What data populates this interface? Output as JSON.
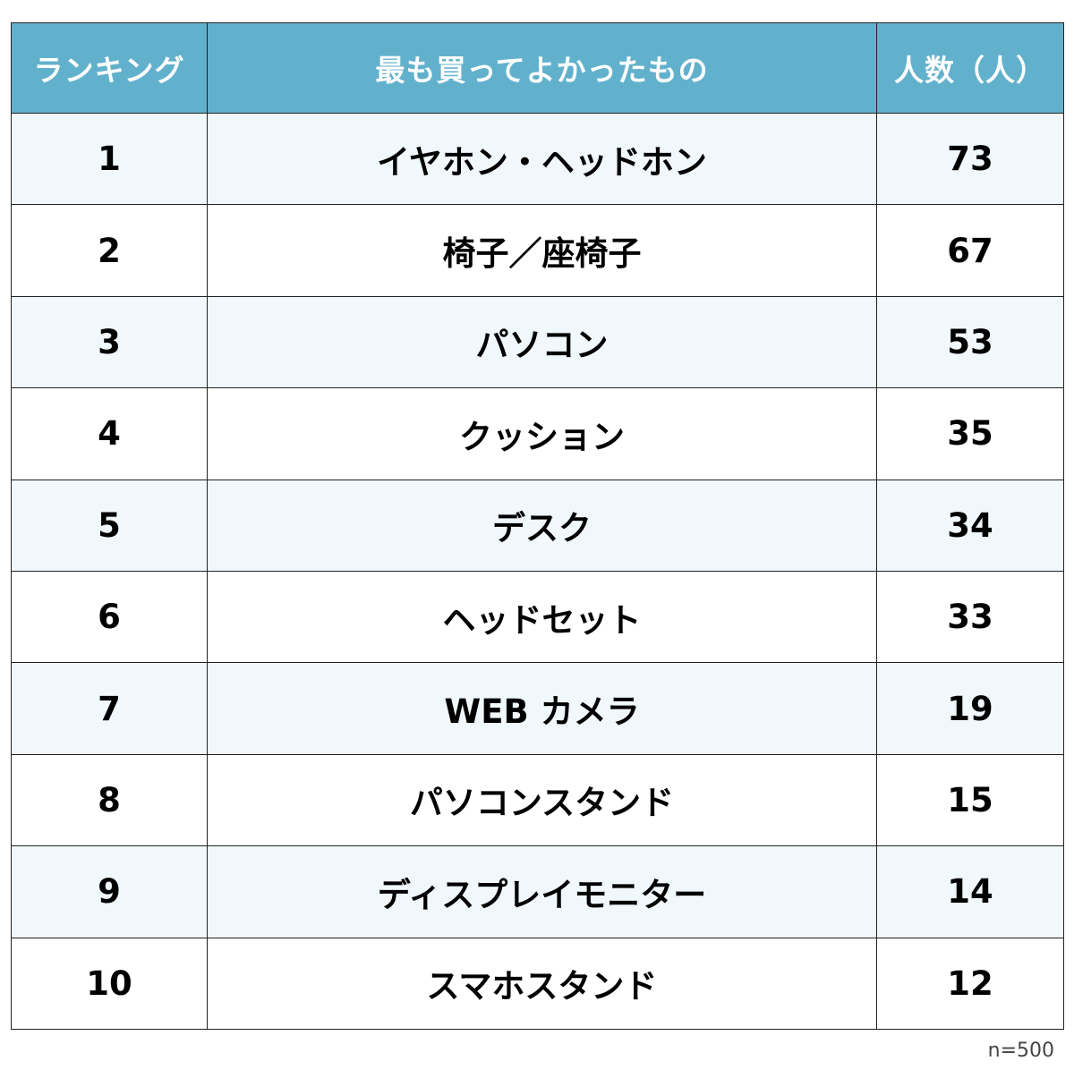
{
  "chart_data": {
    "type": "table",
    "columns": [
      "ランキング",
      "最も買ってよかったもの",
      "人数（人）"
    ],
    "rows": [
      {
        "rank": "1",
        "item": "イヤホン・ヘッドホン",
        "count": 73
      },
      {
        "rank": "2",
        "item": "椅子／座椅子",
        "count": 67
      },
      {
        "rank": "3",
        "item": "パソコン",
        "count": 53
      },
      {
        "rank": "4",
        "item": "クッション",
        "count": 35
      },
      {
        "rank": "5",
        "item": "デスク",
        "count": 34
      },
      {
        "rank": "6",
        "item": "ヘッドセット",
        "count": 33
      },
      {
        "rank": "7",
        "item": "WEB カメラ",
        "count": 19
      },
      {
        "rank": "8",
        "item": "パソコンスタンド",
        "count": 15
      },
      {
        "rank": "9",
        "item": "ディスプレイモニター",
        "count": 14
      },
      {
        "rank": "10",
        "item": "スマホスタンド",
        "count": 12
      }
    ],
    "note": "n=500"
  },
  "colors": {
    "header_background": "#62b1cc",
    "header_text": "#ffffff",
    "odd_row_background": "#f1f8fb",
    "even_row_background": "#ffffff",
    "border": "#222222"
  }
}
